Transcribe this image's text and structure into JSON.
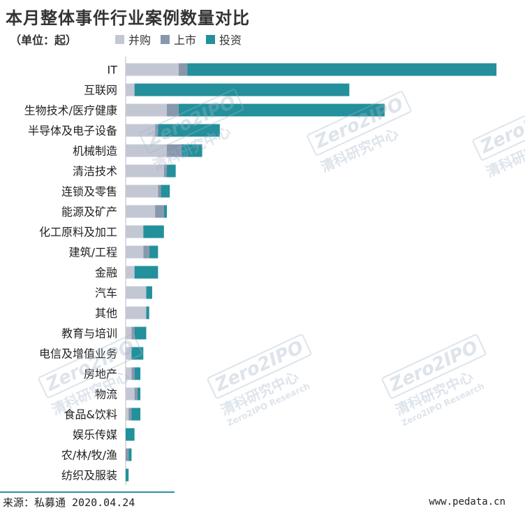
{
  "title": "本月整体事件行业案例数量对比",
  "unit_label": "（单位：起）",
  "colors": {
    "并购": "#c3c7d3",
    "上市": "#8997ad",
    "投资": "#23909b"
  },
  "watermark": {
    "logo": "Zero2IPO",
    "name": "清科研究中心",
    "sub": "Zero2IPO Research"
  },
  "footer": {
    "source": "来源：私募通 2020.04.24",
    "site": "www.pedata.cn"
  },
  "chart_data": {
    "type": "bar",
    "orientation": "horizontal",
    "stacked": true,
    "categories": [
      "IT",
      "互联网",
      "生物技术/医疗健康",
      "半导体及电子设备",
      "机械制造",
      "清洁技术",
      "连锁及零售",
      "能源及矿产",
      "化工原料及加工",
      "建筑/工程",
      "金融",
      "汽车",
      "其他",
      "教育与培训",
      "电信及增值业务",
      "房地产",
      "物流",
      "食品&饮料",
      "娱乐传媒",
      "农/林/牧/渔",
      "纺织及服装"
    ],
    "series": [
      {
        "name": "并购",
        "values": [
          18,
          3,
          14,
          10,
          14,
          13,
          11,
          10,
          6,
          6,
          3,
          7,
          7,
          2,
          2,
          2,
          3,
          1,
          0,
          0,
          0
        ]
      },
      {
        "name": "上市",
        "values": [
          3,
          0,
          4,
          1,
          5,
          1,
          1,
          3,
          0,
          2,
          0,
          0,
          0,
          1,
          0,
          1,
          1,
          1,
          0,
          1,
          0
        ]
      },
      {
        "name": "投资",
        "values": [
          105,
          73,
          70,
          21,
          7,
          3,
          3,
          1,
          7,
          3,
          8,
          2,
          1,
          4,
          4,
          2,
          1,
          3,
          3,
          1,
          1
        ]
      }
    ],
    "xlim": [
      0,
      130
    ],
    "legend_position": "top",
    "grid": false
  }
}
